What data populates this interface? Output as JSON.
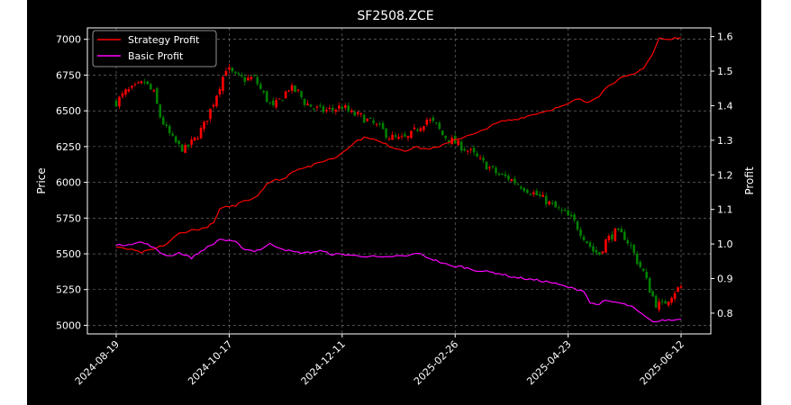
{
  "chart_data": {
    "type": "candlestick-line",
    "title": "SF2508.ZCE",
    "ylabel_left": "Price",
    "ylabel_right": "Profit",
    "ylim_left": [
      4940,
      7080
    ],
    "ylim_right": [
      0.74,
      1.625
    ],
    "yticks_left": [
      "5000",
      "5250",
      "5500",
      "5750",
      "6000",
      "6250",
      "6500",
      "6750",
      "7000"
    ],
    "yticks_right": [
      "0.8",
      "0.9",
      "1.0",
      "1.1",
      "1.2",
      "1.3",
      "1.4",
      "1.5",
      "1.6"
    ],
    "xticks": [
      "2024-08-19",
      "2024-10-17",
      "2024-12-11",
      "2025-02-26",
      "2025-04-23",
      "2025-06-12"
    ],
    "grid": true,
    "legend_position": "top-left",
    "colors": {
      "background": "#000000",
      "up": "#ff0000",
      "down": "#008000",
      "strategy": "#ff0000",
      "basic": "#ff00ff"
    },
    "price_anchors": [
      [
        0,
        6560
      ],
      [
        3,
        6630
      ],
      [
        6,
        6660
      ],
      [
        9,
        6700
      ],
      [
        12,
        6620
      ],
      [
        14,
        6460
      ],
      [
        16,
        6370
      ],
      [
        18,
        6300
      ],
      [
        20,
        6250
      ],
      [
        22,
        6230
      ],
      [
        25,
        6300
      ],
      [
        28,
        6400
      ],
      [
        31,
        6560
      ],
      [
        33,
        6680
      ],
      [
        35,
        6800
      ],
      [
        38,
        6740
      ],
      [
        41,
        6720
      ],
      [
        44,
        6730
      ],
      [
        46,
        6650
      ],
      [
        48,
        6580
      ],
      [
        50,
        6520
      ],
      [
        53,
        6600
      ],
      [
        55,
        6660
      ],
      [
        58,
        6630
      ],
      [
        60,
        6560
      ],
      [
        63,
        6520
      ],
      [
        66,
        6500
      ],
      [
        69,
        6510
      ],
      [
        72,
        6530
      ],
      [
        75,
        6480
      ],
      [
        78,
        6460
      ],
      [
        81,
        6420
      ],
      [
        84,
        6380
      ],
      [
        87,
        6320
      ],
      [
        90,
        6300
      ],
      [
        93,
        6310
      ],
      [
        96,
        6380
      ],
      [
        99,
        6440
      ],
      [
        102,
        6400
      ],
      [
        104,
        6330
      ],
      [
        107,
        6290
      ],
      [
        110,
        6250
      ],
      [
        113,
        6210
      ],
      [
        116,
        6150
      ],
      [
        119,
        6100
      ],
      [
        122,
        6050
      ],
      [
        125,
        6030
      ],
      [
        128,
        5990
      ],
      [
        131,
        5950
      ],
      [
        134,
        5910
      ],
      [
        137,
        5870
      ],
      [
        140,
        5820
      ],
      [
        143,
        5780
      ],
      [
        146,
        5720
      ],
      [
        149,
        5620
      ],
      [
        152,
        5520
      ],
      [
        154,
        5500
      ],
      [
        156,
        5590
      ],
      [
        159,
        5650
      ],
      [
        162,
        5620
      ],
      [
        164,
        5550
      ],
      [
        166,
        5450
      ],
      [
        168,
        5370
      ],
      [
        170,
        5250
      ],
      [
        172,
        5150
      ],
      [
        174,
        5140
      ],
      [
        176,
        5190
      ],
      [
        178,
        5240
      ],
      [
        180,
        5270
      ]
    ],
    "strategy_anchors": [
      [
        0,
        0.99
      ],
      [
        4,
        0.985
      ],
      [
        8,
        0.975
      ],
      [
        12,
        0.985
      ],
      [
        16,
        1.0
      ],
      [
        20,
        1.03
      ],
      [
        24,
        1.04
      ],
      [
        28,
        1.045
      ],
      [
        31,
        1.06
      ],
      [
        33,
        1.1
      ],
      [
        36,
        1.11
      ],
      [
        38,
        1.11
      ],
      [
        40,
        1.125
      ],
      [
        43,
        1.13
      ],
      [
        45,
        1.14
      ],
      [
        48,
        1.175
      ],
      [
        51,
        1.185
      ],
      [
        54,
        1.19
      ],
      [
        56,
        1.21
      ],
      [
        59,
        1.22
      ],
      [
        62,
        1.225
      ],
      [
        66,
        1.24
      ],
      [
        70,
        1.25
      ],
      [
        74,
        1.28
      ],
      [
        77,
        1.3
      ],
      [
        80,
        1.31
      ],
      [
        84,
        1.295
      ],
      [
        88,
        1.28
      ],
      [
        92,
        1.27
      ],
      [
        95,
        1.28
      ],
      [
        99,
        1.275
      ],
      [
        103,
        1.28
      ],
      [
        107,
        1.3
      ],
      [
        111,
        1.31
      ],
      [
        115,
        1.32
      ],
      [
        119,
        1.34
      ],
      [
        123,
        1.355
      ],
      [
        127,
        1.36
      ],
      [
        131,
        1.37
      ],
      [
        135,
        1.38
      ],
      [
        139,
        1.39
      ],
      [
        143,
        1.4
      ],
      [
        147,
        1.42
      ],
      [
        150,
        1.41
      ],
      [
        154,
        1.43
      ],
      [
        157,
        1.46
      ],
      [
        161,
        1.48
      ],
      [
        165,
        1.49
      ],
      [
        168,
        1.51
      ],
      [
        171,
        1.55
      ],
      [
        173,
        1.595
      ],
      [
        176,
        1.59
      ],
      [
        180,
        1.6
      ]
    ],
    "basic_anchors": [
      [
        0,
        0.995
      ],
      [
        4,
        1.0
      ],
      [
        8,
        1.005
      ],
      [
        11,
        0.995
      ],
      [
        14,
        0.975
      ],
      [
        17,
        0.965
      ],
      [
        20,
        0.975
      ],
      [
        24,
        0.96
      ],
      [
        28,
        0.985
      ],
      [
        31,
        1.0
      ],
      [
        33,
        1.015
      ],
      [
        35,
        1.01
      ],
      [
        38,
        1.005
      ],
      [
        41,
        0.985
      ],
      [
        44,
        0.98
      ],
      [
        46,
        0.985
      ],
      [
        49,
        1.0
      ],
      [
        52,
        0.99
      ],
      [
        55,
        0.98
      ],
      [
        58,
        0.975
      ],
      [
        61,
        0.975
      ],
      [
        65,
        0.98
      ],
      [
        69,
        0.97
      ],
      [
        73,
        0.97
      ],
      [
        77,
        0.965
      ],
      [
        81,
        0.965
      ],
      [
        85,
        0.96
      ],
      [
        89,
        0.965
      ],
      [
        93,
        0.965
      ],
      [
        96,
        0.975
      ],
      [
        98,
        0.965
      ],
      [
        101,
        0.955
      ],
      [
        104,
        0.945
      ],
      [
        107,
        0.935
      ],
      [
        110,
        0.935
      ],
      [
        114,
        0.925
      ],
      [
        118,
        0.92
      ],
      [
        122,
        0.915
      ],
      [
        126,
        0.905
      ],
      [
        130,
        0.9
      ],
      [
        134,
        0.895
      ],
      [
        138,
        0.89
      ],
      [
        142,
        0.88
      ],
      [
        146,
        0.87
      ],
      [
        149,
        0.865
      ],
      [
        151,
        0.83
      ],
      [
        153,
        0.825
      ],
      [
        156,
        0.835
      ],
      [
        160,
        0.83
      ],
      [
        164,
        0.82
      ],
      [
        167,
        0.8
      ],
      [
        170,
        0.78
      ],
      [
        172,
        0.775
      ],
      [
        175,
        0.78
      ],
      [
        178,
        0.78
      ],
      [
        180,
        0.785
      ]
    ],
    "num_bars": 181
  },
  "legend": [
    {
      "label": "Strategy Profit",
      "color": "#ff0000"
    },
    {
      "label": "Basic Profit",
      "color": "#ff00ff"
    }
  ]
}
